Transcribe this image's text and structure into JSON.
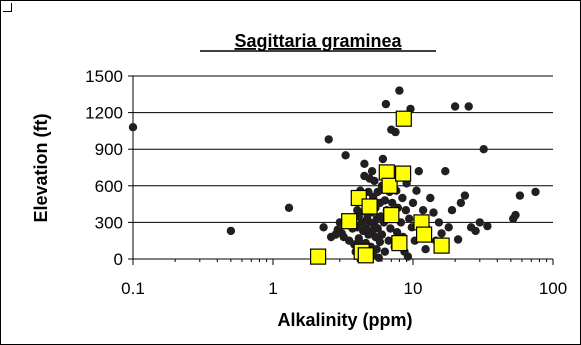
{
  "chart_data": {
    "type": "scatter",
    "title": "Sagittaria graminea",
    "xlabel": "Alkalinity (ppm)",
    "ylabel": "Elevation (ft)",
    "x_scale": "log",
    "xlim": [
      0.1,
      100
    ],
    "ylim": [
      0,
      1500
    ],
    "x_ticks": [
      0.1,
      1,
      10,
      100
    ],
    "x_tick_labels": [
      "0.1",
      "1",
      "10",
      "100"
    ],
    "y_ticks": [
      0,
      300,
      600,
      900,
      1200,
      1500
    ],
    "y_tick_labels": [
      "0",
      "300",
      "600",
      "900",
      "1200",
      "1500"
    ],
    "grid": "horizontal",
    "legend": "none",
    "colors": {
      "dot": "#231f20",
      "square_fill": "#ffff00",
      "square_stroke": "#000000"
    },
    "series": [
      {
        "marker": "circle",
        "points": [
          [
            0.1,
            1080
          ],
          [
            0.5,
            230
          ],
          [
            1.3,
            420
          ],
          [
            2.3,
            260
          ],
          [
            2.5,
            980
          ],
          [
            2.6,
            180
          ],
          [
            2.8,
            200
          ],
          [
            2.9,
            240
          ],
          [
            3.0,
            300
          ],
          [
            3.1,
            210
          ],
          [
            3.2,
            180
          ],
          [
            3.3,
            850
          ],
          [
            3.4,
            280
          ],
          [
            3.5,
            150
          ],
          [
            3.6,
            330
          ],
          [
            3.7,
            250
          ],
          [
            3.8,
            120
          ],
          [
            3.9,
            60
          ],
          [
            4.0,
            260
          ],
          [
            4.0,
            400
          ],
          [
            4.1,
            350
          ],
          [
            4.1,
            170
          ],
          [
            4.2,
            130
          ],
          [
            4.2,
            560
          ],
          [
            4.3,
            480
          ],
          [
            4.3,
            300
          ],
          [
            4.4,
            50
          ],
          [
            4.4,
            230
          ],
          [
            4.5,
            780
          ],
          [
            4.5,
            680
          ],
          [
            4.5,
            390
          ],
          [
            4.6,
            250
          ],
          [
            4.6,
            130
          ],
          [
            4.7,
            330
          ],
          [
            4.7,
            70
          ],
          [
            4.8,
            550
          ],
          [
            4.8,
            450
          ],
          [
            4.8,
            200
          ],
          [
            4.9,
            300
          ],
          [
            4.9,
            660
          ],
          [
            5.0,
            100
          ],
          [
            5.0,
            380
          ],
          [
            5.1,
            720
          ],
          [
            5.1,
            230
          ],
          [
            5.2,
            510
          ],
          [
            5.2,
            30
          ],
          [
            5.3,
            280
          ],
          [
            5.3,
            640
          ],
          [
            5.4,
            180
          ],
          [
            5.4,
            420
          ],
          [
            5.5,
            330
          ],
          [
            5.5,
            80
          ],
          [
            5.6,
            550
          ],
          [
            5.6,
            250
          ],
          [
            5.7,
            10
          ],
          [
            5.8,
            460
          ],
          [
            5.8,
            140
          ],
          [
            5.9,
            350
          ],
          [
            6.0,
            600
          ],
          [
            6.0,
            200
          ],
          [
            6.1,
            820
          ],
          [
            6.2,
            300
          ],
          [
            6.3,
            480
          ],
          [
            6.3,
            60
          ],
          [
            6.4,
            1270
          ],
          [
            6.5,
            400
          ],
          [
            6.6,
            720
          ],
          [
            6.7,
            150
          ],
          [
            6.8,
            550
          ],
          [
            6.9,
            250
          ],
          [
            7.0,
            1060
          ],
          [
            7.1,
            460
          ],
          [
            7.2,
            330
          ],
          [
            7.3,
            640
          ],
          [
            7.4,
            100
          ],
          [
            7.5,
            1040
          ],
          [
            7.6,
            560
          ],
          [
            7.7,
            220
          ],
          [
            7.8,
            420
          ],
          [
            8.0,
            1380
          ],
          [
            8.1,
            700
          ],
          [
            8.2,
            300
          ],
          [
            8.4,
            500
          ],
          [
            8.5,
            180
          ],
          [
            8.7,
            60
          ],
          [
            8.9,
            400
          ],
          [
            9.0,
            620
          ],
          [
            9.2,
            20
          ],
          [
            9.4,
            330
          ],
          [
            9.6,
            1230
          ],
          [
            9.8,
            260
          ],
          [
            10.0,
            460
          ],
          [
            10.3,
            150
          ],
          [
            10.6,
            560
          ],
          [
            11.0,
            720
          ],
          [
            11.3,
            300
          ],
          [
            11.8,
            400
          ],
          [
            12.3,
            80
          ],
          [
            12.8,
            240
          ],
          [
            13.3,
            500
          ],
          [
            14.0,
            380
          ],
          [
            14.6,
            150
          ],
          [
            15.3,
            300
          ],
          [
            16.0,
            210
          ],
          [
            17.0,
            720
          ],
          [
            18.0,
            260
          ],
          [
            19.0,
            400
          ],
          [
            20.0,
            1250
          ],
          [
            21.0,
            160
          ],
          [
            22.0,
            460
          ],
          [
            23.5,
            520
          ],
          [
            25.0,
            1250
          ],
          [
            26.0,
            260
          ],
          [
            28.0,
            230
          ],
          [
            30.0,
            300
          ],
          [
            32.0,
            900
          ],
          [
            34.0,
            270
          ],
          [
            52.0,
            330
          ],
          [
            54.0,
            360
          ],
          [
            58.0,
            520
          ],
          [
            75.0,
            550
          ]
        ]
      },
      {
        "marker": "square",
        "points": [
          [
            2.1,
            20
          ],
          [
            3.5,
            310
          ],
          [
            4.1,
            500
          ],
          [
            4.3,
            60
          ],
          [
            4.6,
            30
          ],
          [
            4.9,
            430
          ],
          [
            6.5,
            710
          ],
          [
            6.8,
            600
          ],
          [
            7.0,
            360
          ],
          [
            8.0,
            130
          ],
          [
            8.5,
            700
          ],
          [
            8.6,
            1150
          ],
          [
            11.5,
            300
          ],
          [
            12.0,
            200
          ],
          [
            16.0,
            110
          ]
        ]
      }
    ]
  }
}
